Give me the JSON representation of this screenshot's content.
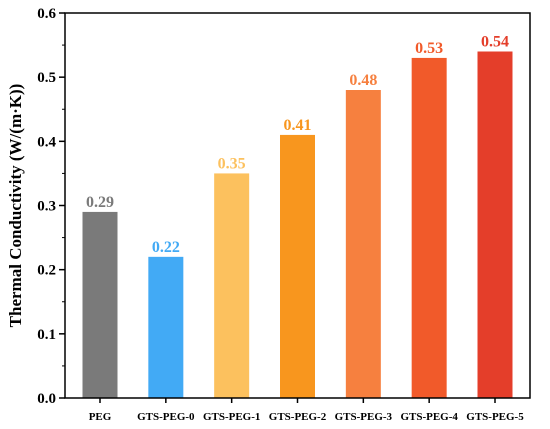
{
  "chart_data": {
    "type": "bar",
    "ylabel": "Thermal Conductivity  (W/(m·K))",
    "xlabel": "",
    "ylim": [
      0.0,
      0.6
    ],
    "yticks": [
      "0.0",
      "0.1",
      "0.2",
      "0.3",
      "0.4",
      "0.5",
      "0.6"
    ],
    "categories": [
      "PEG",
      "GTS-PEG-0",
      "GTS-PEG-1",
      "GTS-PEG-2",
      "GTS-PEG-3",
      "GTS-PEG-4",
      "GTS-PEG-5"
    ],
    "values": [
      0.29,
      0.22,
      0.35,
      0.41,
      0.48,
      0.53,
      0.54
    ],
    "value_labels": [
      "0.29",
      "0.22",
      "0.35",
      "0.41",
      "0.48",
      "0.53",
      "0.54"
    ],
    "colors": [
      "#7a7a7a",
      "#42aaf5",
      "#fcc15e",
      "#f8961e",
      "#f6803f",
      "#f15a2a",
      "#e43e2a"
    ],
    "grid": false,
    "legend": "none"
  }
}
